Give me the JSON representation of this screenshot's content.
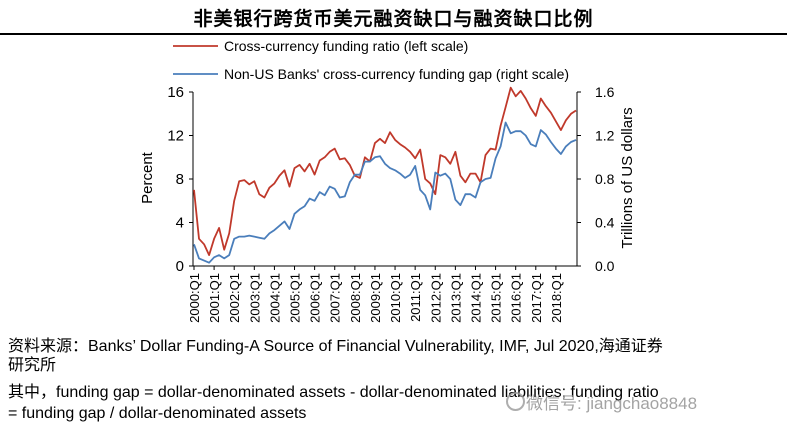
{
  "header": {
    "title": "非美银行跨货币美元融资缺口与融资缺口比例"
  },
  "footer": {
    "source_line1": "资料来源：Banks’ Dollar Funding-A Source of Financial Vulnerability, IMF, Jul 2020,海通证券",
    "source_line2": "研究所",
    "note_line1": "其中，funding gap = dollar-denominated assets - dollar-denominated liabilities; funding ratio",
    "note_line2": "= funding gap / dollar-denominated assets"
  },
  "watermark": {
    "text": "微信号: jiangchao8848"
  },
  "colors": {
    "ratio": "#c0392b",
    "gap": "#4a7ebb"
  },
  "chart_data": {
    "type": "line",
    "title": "",
    "x_tick_labels": [
      "2000:Q1",
      "2001:Q1",
      "2002:Q1",
      "2003:Q1",
      "2004:Q1",
      "2005:Q1",
      "2006:Q1",
      "2007:Q1",
      "2008:Q1",
      "2009:Q1",
      "2010:Q1",
      "2011:Q1",
      "2012:Q1",
      "2013:Q1",
      "2014:Q1",
      "2015:Q1",
      "2016:Q1",
      "2017:Q1",
      "2018:Q1"
    ],
    "x_start_label": "2000:Q1",
    "x_count": 77,
    "left_axis": {
      "label": "Percent",
      "ylim": [
        0,
        16
      ],
      "ticks": [
        0,
        4,
        8,
        12,
        16
      ]
    },
    "right_axis": {
      "label": "Trillions of US dollars",
      "ylim": [
        0,
        1.6
      ],
      "ticks": [
        "0.0",
        "0.4",
        "0.8",
        "1.2",
        "1.6"
      ]
    },
    "legend": [
      "Cross-currency funding ratio (left scale)",
      "Non-US Banks' cross-currency funding gap (right scale)"
    ],
    "series": [
      {
        "name": "Cross-currency funding ratio (left scale)",
        "axis": "left",
        "values": [
          7.0,
          2.5,
          2.0,
          1.0,
          2.5,
          3.5,
          1.5,
          3.0,
          6.0,
          7.8,
          7.9,
          7.5,
          7.8,
          6.6,
          6.3,
          7.2,
          7.6,
          8.3,
          8.8,
          7.3,
          9.0,
          9.3,
          8.7,
          9.4,
          8.4,
          9.7,
          10.0,
          10.5,
          10.8,
          9.8,
          9.9,
          9.3,
          8.3,
          8.1,
          10.0,
          9.6,
          11.3,
          11.7,
          11.3,
          12.3,
          11.6,
          11.2,
          10.9,
          10.5,
          9.9,
          10.7,
          8.0,
          7.6,
          6.6,
          10.2,
          10.0,
          9.4,
          10.5,
          8.3,
          7.7,
          8.5,
          8.5,
          7.7,
          10.2,
          10.8,
          10.7,
          12.9,
          14.6,
          16.4,
          15.6,
          16.1,
          15.4,
          14.5,
          13.8,
          15.4,
          14.7,
          14.1,
          13.3,
          12.5,
          13.4,
          14.0,
          14.3
        ]
      },
      {
        "name": "Non-US Banks' cross-currency funding gap (right scale)",
        "axis": "right",
        "values": [
          0.2,
          0.07,
          0.05,
          0.03,
          0.08,
          0.1,
          0.07,
          0.1,
          0.25,
          0.27,
          0.27,
          0.28,
          0.27,
          0.26,
          0.25,
          0.3,
          0.33,
          0.37,
          0.41,
          0.34,
          0.48,
          0.52,
          0.55,
          0.62,
          0.6,
          0.68,
          0.65,
          0.73,
          0.71,
          0.63,
          0.64,
          0.77,
          0.84,
          0.84,
          0.96,
          0.96,
          1.0,
          1.01,
          0.94,
          0.9,
          0.88,
          0.85,
          0.81,
          0.84,
          0.92,
          0.7,
          0.65,
          0.52,
          0.86,
          0.83,
          0.85,
          0.8,
          0.61,
          0.56,
          0.66,
          0.66,
          0.63,
          0.77,
          0.8,
          0.81,
          0.99,
          1.1,
          1.32,
          1.22,
          1.24,
          1.24,
          1.2,
          1.12,
          1.1,
          1.25,
          1.21,
          1.14,
          1.08,
          1.03,
          1.1,
          1.14,
          1.16
        ]
      }
    ]
  }
}
